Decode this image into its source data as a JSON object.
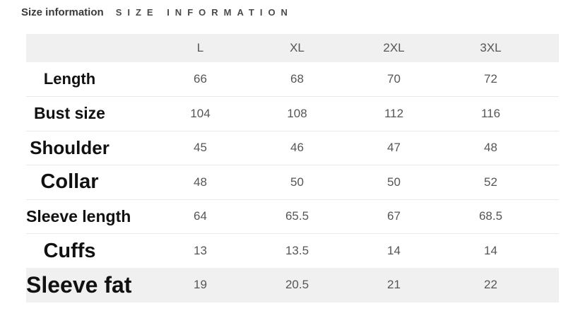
{
  "header": {
    "title": "Size information",
    "subtitle": "SIZE INFORMATION"
  },
  "table": {
    "columns": [
      "",
      "L",
      "XL",
      "2XL",
      "3XL"
    ],
    "rows": [
      {
        "label": "Length",
        "values": [
          "66",
          "68",
          "70",
          "72"
        ]
      },
      {
        "label": "Bust size",
        "values": [
          "104",
          "108",
          "112",
          "116"
        ]
      },
      {
        "label": "Shoulder",
        "values": [
          "45",
          "46",
          "47",
          "48"
        ]
      },
      {
        "label": "Collar",
        "values": [
          "48",
          "50",
          "50",
          "52"
        ]
      },
      {
        "label": "Sleeve length",
        "values": [
          "64",
          "65.5",
          "67",
          "68.5"
        ]
      },
      {
        "label": "Cuffs",
        "values": [
          "13",
          "13.5",
          "14",
          "14"
        ]
      },
      {
        "label": "Sleeve fat",
        "values": [
          "19",
          "20.5",
          "21",
          "22"
        ]
      }
    ]
  },
  "colors": {
    "page_bg": "#ffffff",
    "header_row_bg": "#f0f0f0",
    "last_row_bg": "#f0f0f0",
    "title_text": "#3a3a3a",
    "subtitle_text": "#4a4a4a",
    "column_header_text": "#555555",
    "label_text": "#111111",
    "value_text": "#565656",
    "divider": "#e9e9e9"
  }
}
